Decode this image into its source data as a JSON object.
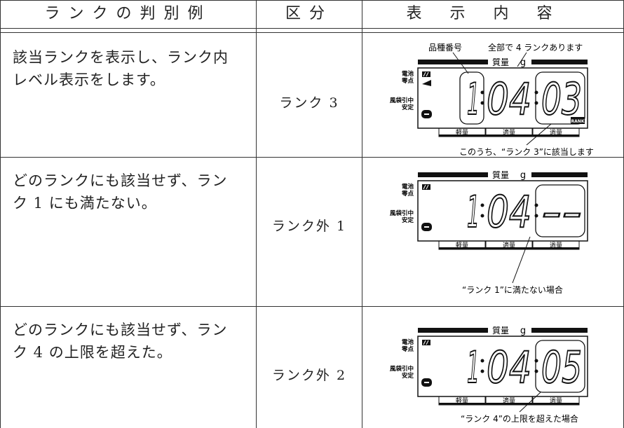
{
  "header": {
    "example": "ランクの判別例",
    "category": "区分",
    "display": "表示内容"
  },
  "lcd_labels": {
    "mass": "質量",
    "unit": "g",
    "battery": "電池",
    "zero": "零点",
    "tare": "風袋引中",
    "stable": "安定",
    "light": "軽量",
    "ok": "適量",
    "over": "過量",
    "rank_mark": "RANK"
  },
  "rows": [
    {
      "description": [
        "該当ランクを表示し、ランク内",
        "レベル表示をします。"
      ],
      "category": "ランク 3",
      "display": {
        "product": "1",
        "weight": "04",
        "rank": "03"
      },
      "product_label": "品種番号",
      "count_label": "全部で 4 ランクあります",
      "note": "このうち、“ランク 3”に該当します"
    },
    {
      "description": [
        "どのランクにも該当せず、ラン",
        "ク 1 にも満たない。"
      ],
      "category": "ランク外 1",
      "display": {
        "product": "1",
        "weight": "04",
        "rank": "--"
      },
      "note": "“ランク 1”に満たない場合"
    },
    {
      "description": [
        "どのランクにも該当せず、ラン",
        "ク 4 の上限を超えた。"
      ],
      "category": "ランク外 2",
      "display": {
        "product": "1",
        "weight": "04",
        "rank": "05"
      },
      "note": "“ランク 4”の上限を超えた場合"
    }
  ]
}
